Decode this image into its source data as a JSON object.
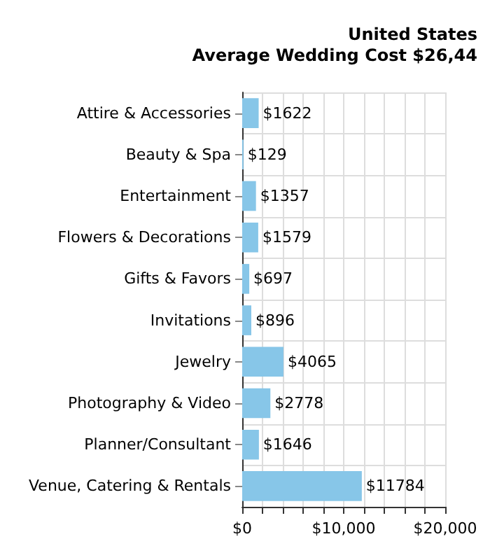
{
  "chart_data": {
    "type": "bar",
    "orientation": "horizontal",
    "title": "United States\nAverage Wedding Cost $26,44",
    "categories": [
      "Attire & Accessories",
      "Beauty & Spa",
      "Entertainment",
      "Flowers & Decorations",
      "Gifts & Favors",
      "Invitations",
      "Jewelry",
      "Photography & Video",
      "Planner/Consultant",
      "Venue, Catering & Rentals"
    ],
    "values": [
      1622,
      129,
      1357,
      1579,
      697,
      896,
      4065,
      2778,
      1646,
      11784
    ],
    "value_labels": [
      "$1622",
      "$129",
      "$1357",
      "$1579",
      "$697",
      "$896",
      "$4065",
      "$2778",
      "$1646",
      "$11784"
    ],
    "color": "#87c6e8",
    "xlim": [
      0,
      20000
    ],
    "xticks": [
      {
        "value": 0,
        "label": "$0"
      },
      {
        "value": 2000,
        "label": null
      },
      {
        "value": 4000,
        "label": null
      },
      {
        "value": 6000,
        "label": null
      },
      {
        "value": 8000,
        "label": null
      },
      {
        "value": 10000,
        "label": "$10,000"
      },
      {
        "value": 12000,
        "label": null
      },
      {
        "value": 14000,
        "label": null
      },
      {
        "value": 16000,
        "label": null
      },
      {
        "value": 18000,
        "label": null
      },
      {
        "value": 20000,
        "label": "$20,000"
      }
    ],
    "grid": true
  }
}
